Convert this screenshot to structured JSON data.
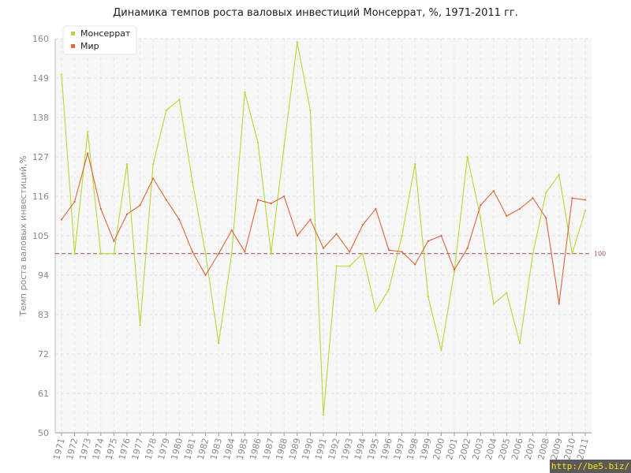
{
  "chart_data": {
    "type": "line",
    "title": "Динамика темпов роста валовых инвестиций Монсеррат, %, 1971-2011 гг.",
    "xlabel": "",
    "ylabel": "Темп роста валовых инвестиций,%",
    "ylim": [
      50,
      160
    ],
    "yticks": [
      "50",
      "61",
      "72",
      "83",
      "94",
      "105",
      "116",
      "127",
      "138",
      "149",
      "160"
    ],
    "x": [
      "1971",
      "1972",
      "1973",
      "1974",
      "1975",
      "1976",
      "1977",
      "1978",
      "1979",
      "1980",
      "1981",
      "1982",
      "1983",
      "1984",
      "1985",
      "1986",
      "1987",
      "1988",
      "1989",
      "1990",
      "1991",
      "1992",
      "1993",
      "1994",
      "1995",
      "1996",
      "1997",
      "1998",
      "1999",
      "2000",
      "2001",
      "2002",
      "2003",
      "2004",
      "2005",
      "2006",
      "2007",
      "2008",
      "2009",
      "2010",
      "2011"
    ],
    "series": [
      {
        "name": "Монсеррат",
        "color": "#b5d83a",
        "values": [
          150,
          100,
          134,
          100,
          100,
          125,
          80,
          125,
          140,
          143,
          120,
          100,
          75,
          100,
          145,
          131,
          100,
          130,
          159,
          140,
          55,
          96.5,
          96.5,
          100,
          84,
          90,
          105,
          125,
          88,
          73,
          95,
          127,
          110,
          86,
          89,
          75,
          100,
          117,
          122,
          100,
          112
        ]
      },
      {
        "name": "Мир",
        "color": "#d9693a",
        "values": [
          109.5,
          114.5,
          128,
          112.5,
          103.5,
          111,
          113.5,
          121,
          115,
          109.5,
          100.5,
          94,
          100,
          106.5,
          100.5,
          115,
          114,
          116,
          105,
          109.5,
          101.5,
          105.5,
          100.5,
          108,
          112.5,
          101,
          100.5,
          97,
          103.5,
          105,
          95.5,
          101.5,
          113.5,
          117.5,
          110.5,
          112.5,
          115.5,
          110,
          86,
          115.5,
          115
        ]
      }
    ],
    "reference_line": {
      "value": 100,
      "label": "100",
      "color": "#a04a5a"
    },
    "legend": "top-left",
    "grid": true
  },
  "watermark": "http://be5.biz/"
}
